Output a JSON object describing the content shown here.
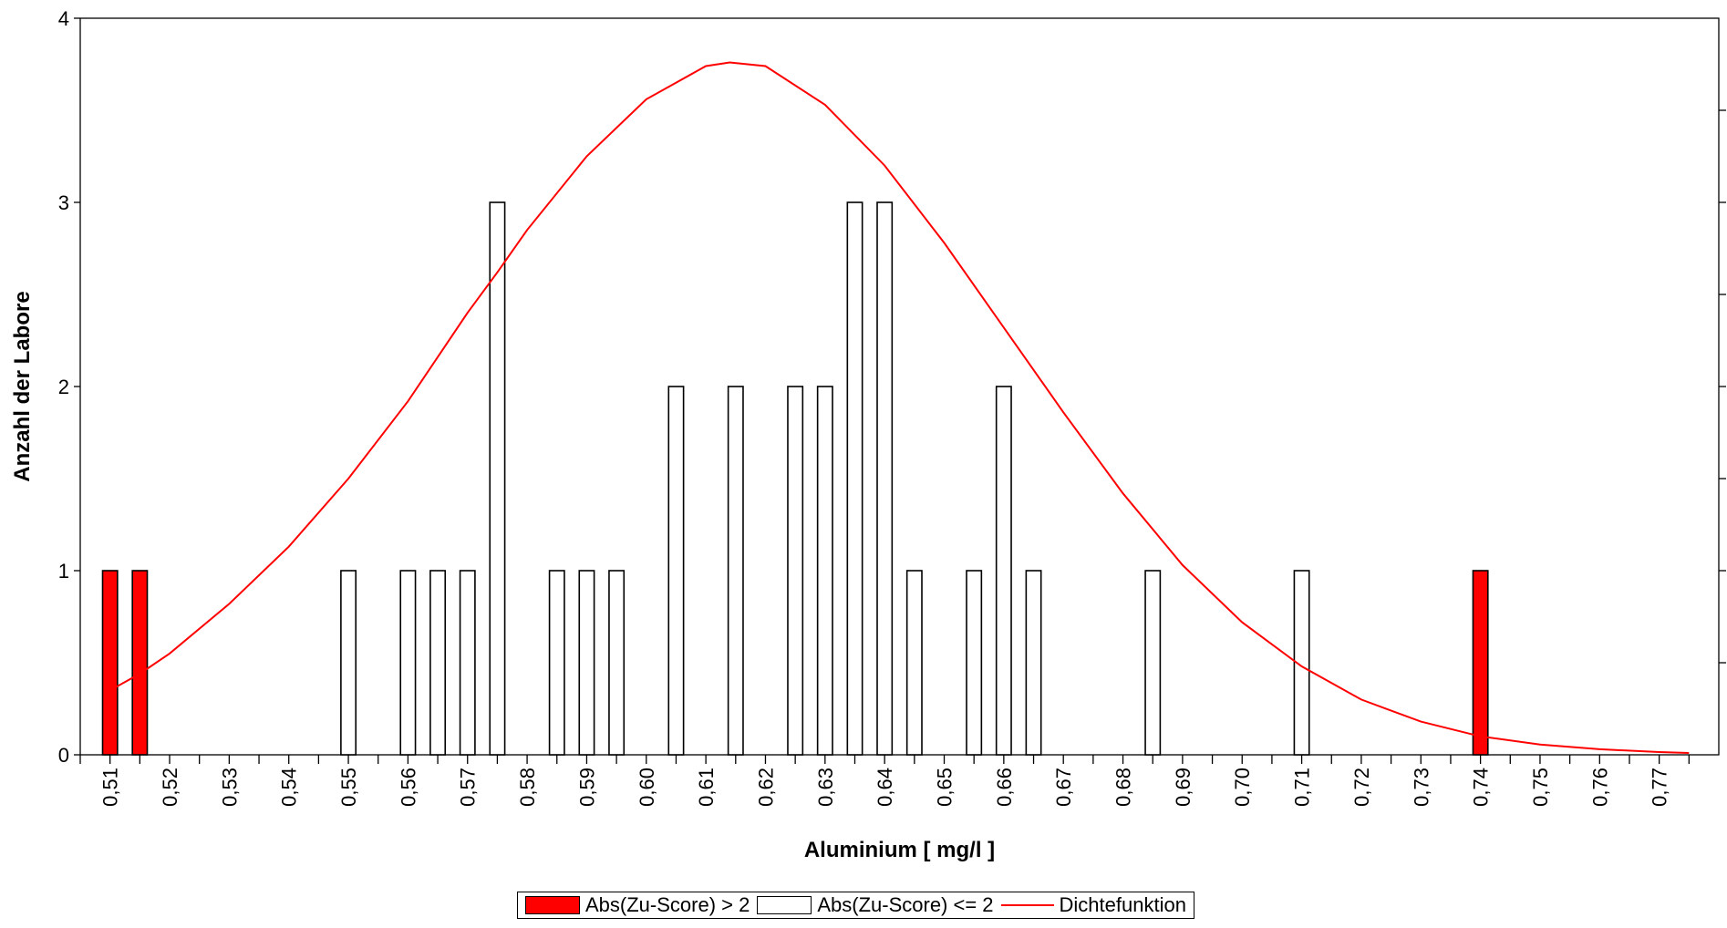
{
  "chart_data": {
    "type": "bar",
    "xlabel": "Aluminium [ mg/l ]",
    "ylabel": "Anzahl der Labore",
    "ylim": [
      0,
      4
    ],
    "yticks": [
      "0",
      "1",
      "2",
      "3",
      "4"
    ],
    "xlim": [
      0.505,
      0.78
    ],
    "xticks": [
      "0,51",
      "0,52",
      "0,53",
      "0,54",
      "0,55",
      "0,56",
      "0,57",
      "0,58",
      "0,59",
      "0,60",
      "0,61",
      "0,62",
      "0,63",
      "0,64",
      "0,65",
      "0,66",
      "0,67",
      "0,68",
      "0,69",
      "0,70",
      "0,71",
      "0,72",
      "0,73",
      "0,74",
      "0,75",
      "0,76",
      "0,77"
    ],
    "xtick_values": [
      0.51,
      0.52,
      0.53,
      0.54,
      0.55,
      0.56,
      0.57,
      0.58,
      0.59,
      0.6,
      0.61,
      0.62,
      0.63,
      0.64,
      0.65,
      0.66,
      0.67,
      0.68,
      0.69,
      0.7,
      0.71,
      0.72,
      0.73,
      0.74,
      0.75,
      0.76,
      0.77
    ],
    "series": [
      {
        "name": "Abs(Zu-Score) > 2",
        "color": "#ff0000",
        "x": [
          0.51,
          0.515,
          0.74
        ],
        "values": [
          1,
          1,
          1
        ]
      },
      {
        "name": "Abs(Zu-Score) <= 2",
        "color": "#ffffff",
        "x": [
          0.55,
          0.56,
          0.565,
          0.57,
          0.575,
          0.585,
          0.59,
          0.595,
          0.605,
          0.615,
          0.625,
          0.63,
          0.635,
          0.64,
          0.645,
          0.655,
          0.66,
          0.665,
          0.685,
          0.71
        ],
        "values": [
          1,
          1,
          1,
          1,
          3,
          1,
          1,
          1,
          2,
          2,
          2,
          2,
          3,
          3,
          1,
          1,
          2,
          1,
          1,
          1
        ]
      }
    ],
    "density": {
      "name": "Dichtefunktion",
      "color": "#ff0000",
      "x": [
        0.51,
        0.515,
        0.52,
        0.53,
        0.54,
        0.55,
        0.56,
        0.57,
        0.575,
        0.58,
        0.59,
        0.6,
        0.61,
        0.614,
        0.62,
        0.63,
        0.64,
        0.65,
        0.66,
        0.67,
        0.68,
        0.69,
        0.7,
        0.71,
        0.72,
        0.73,
        0.74,
        0.75,
        0.76,
        0.77,
        0.775
      ],
      "y": [
        0.35,
        0.44,
        0.55,
        0.82,
        1.13,
        1.5,
        1.92,
        2.4,
        2.62,
        2.85,
        3.25,
        3.56,
        3.74,
        3.76,
        3.74,
        3.53,
        3.2,
        2.78,
        2.32,
        1.86,
        1.42,
        1.03,
        0.72,
        0.48,
        0.3,
        0.18,
        0.1,
        0.056,
        0.03,
        0.015,
        0.01
      ]
    },
    "legend_position": "bottom-center",
    "grid": false
  },
  "legend": {
    "item1": "Abs(Zu-Score) > 2",
    "item2": "Abs(Zu-Score) <= 2",
    "item3": "Dichtefunktion"
  }
}
